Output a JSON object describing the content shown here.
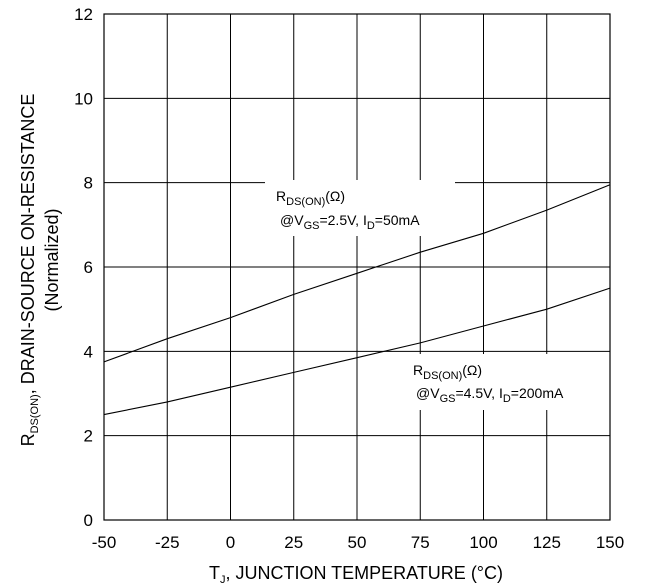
{
  "chart_data": {
    "type": "line",
    "xlabel": {
      "main": "T",
      "sub": "J",
      "rest": ", JUNCTION TEMPERATURE (°C)"
    },
    "ylabel": {
      "pre": "R",
      "sub": "DS(ON)",
      "rest": ", DRAIN-SOURCE ON-RESISTANCE",
      "line2": "(Normalized)"
    },
    "xlim": [
      -50,
      150
    ],
    "ylim": [
      0,
      12
    ],
    "x_ticks": [
      "-50",
      "-25",
      "0",
      "25",
      "50",
      "75",
      "100",
      "125",
      "150"
    ],
    "y_ticks": [
      "0",
      "2",
      "4",
      "6",
      "8",
      "10",
      "12"
    ],
    "grid": true,
    "series": [
      {
        "x": [
          -50,
          -25,
          0,
          25,
          50,
          75,
          100,
          125,
          150
        ],
        "y": [
          3.75,
          4.3,
          4.8,
          5.35,
          5.85,
          6.35,
          6.8,
          7.35,
          7.95
        ]
      },
      {
        "x": [
          -50,
          -25,
          0,
          25,
          50,
          75,
          100,
          125,
          150
        ],
        "y": [
          2.5,
          2.8,
          3.15,
          3.5,
          3.85,
          4.2,
          4.6,
          5.0,
          5.5
        ]
      }
    ],
    "annotations": [
      {
        "line1_main": "R",
        "line1_sub": "DS(ON)",
        "line1_rest": "(Ω)",
        "line2_a": "@V",
        "line2_sub1": "GS",
        "line2_b": "=2.5V, I",
        "line2_sub2": "D",
        "line2_c": "=50mA"
      },
      {
        "line1_main": "R",
        "line1_sub": "DS(ON)",
        "line1_rest": "(Ω)",
        "line2_a": "@V",
        "line2_sub1": "GS",
        "line2_b": "=4.5V, I",
        "line2_sub2": "D",
        "line2_c": "=200mA"
      }
    ]
  }
}
